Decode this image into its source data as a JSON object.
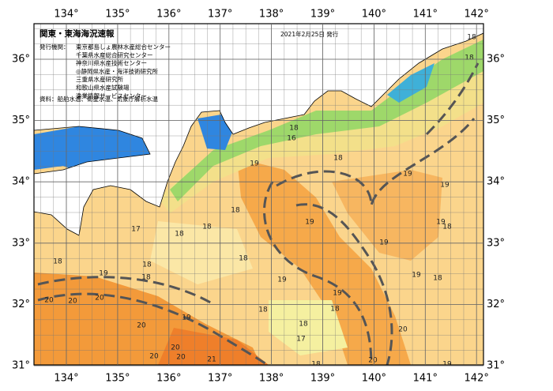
{
  "header": {
    "title": "関東・東海海況速報",
    "date": "2021年2月25日 発行"
  },
  "issuers": {
    "label": "発行機関：",
    "items": [
      "東京都島しょ農林水産総合センター",
      "千葉県水産総合研究センター",
      "神奈川県水産技術センター",
      "◎静岡県水産・海洋技術研究所",
      "三重県水産研究所",
      "和歌山県水産試験場",
      "漁業情報サービスセンター"
    ]
  },
  "source": "資料：船舶水温、衛星水温、気象庁解析水温",
  "lon_ticks": [
    {
      "value": 134,
      "label": "134°"
    },
    {
      "value": 135,
      "label": "135°"
    },
    {
      "value": 136,
      "label": "136°"
    },
    {
      "value": 137,
      "label": "137°"
    },
    {
      "value": 138,
      "label": "138°"
    },
    {
      "value": 139,
      "label": "139°"
    },
    {
      "value": 140,
      "label": "140°"
    },
    {
      "value": 141,
      "label": "141°"
    },
    {
      "value": 142,
      "label": "142°"
    }
  ],
  "lat_ticks": [
    {
      "value": 36,
      "label": "36°"
    },
    {
      "value": 35,
      "label": "35°"
    },
    {
      "value": 34,
      "label": "34°"
    },
    {
      "value": 33,
      "label": "33°"
    },
    {
      "value": 32,
      "label": "32°"
    },
    {
      "value": 31,
      "label": "31°"
    }
  ],
  "contour_labels": [
    18,
    18,
    18,
    16,
    18,
    19,
    19,
    19,
    18,
    19,
    19,
    18,
    17,
    18,
    18,
    19,
    18,
    18,
    18,
    19,
    18,
    19,
    19,
    18,
    20,
    20,
    20,
    18,
    18,
    19,
    19,
    20,
    18,
    17,
    20,
    20,
    20,
    21,
    20,
    18,
    20,
    19
  ]
}
